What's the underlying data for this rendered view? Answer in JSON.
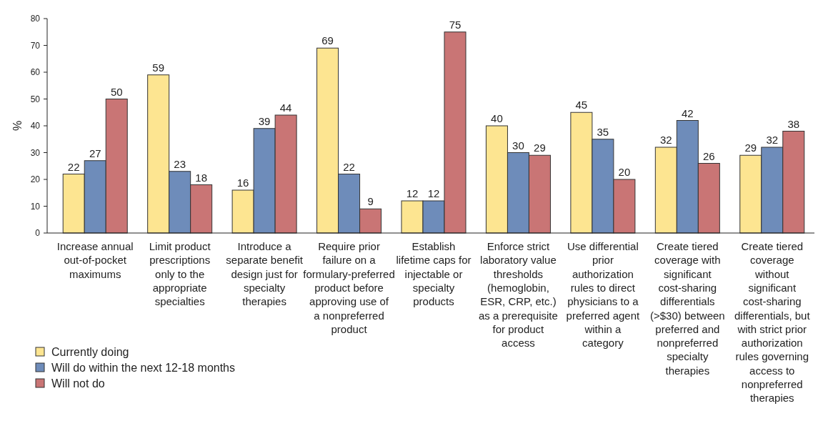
{
  "chart_data": {
    "type": "bar",
    "ylabel": "%",
    "categories": [
      "Increase annual out-of-pocket maximums",
      "Limit product prescriptions only to the appropriate specialties",
      "Introduce a separate benefit design just for specialty therapies",
      "Require prior failure on a formulary-preferred product before approving use of a nonpreferred product",
      "Establish lifetime caps for injectable or specialty products",
      "Enforce strict laboratory value thresholds (hemoglobin, ESR, CRP, etc.) as a prerequisite for product access",
      "Use differential prior authorization rules to direct physicians to a preferred agent within a category",
      "Create tiered coverage with significant cost-sharing differentials (>$30) between preferred and nonpreferred specialty therapies",
      "Create tiered coverage without significant cost-sharing differentials, but with strict prior authorization rules governing access to nonpreferred therapies"
    ],
    "series": [
      {
        "name": "Currently doing",
        "color": "#fde591",
        "values": [
          22,
          59,
          16,
          69,
          12,
          40,
          45,
          32,
          29
        ]
      },
      {
        "name": "Will do within the next 12-18 months",
        "color": "#6e8cba",
        "values": [
          27,
          23,
          39,
          22,
          12,
          30,
          35,
          42,
          32
        ]
      },
      {
        "name": "Will not do",
        "color": "#c97575",
        "values": [
          50,
          18,
          44,
          9,
          75,
          29,
          20,
          26,
          38
        ]
      }
    ],
    "ylim": [
      0,
      80
    ],
    "yticks": [
      0,
      10,
      20,
      30,
      40,
      50,
      60,
      70,
      80
    ],
    "data_labels": true,
    "legend": "bottom left",
    "grid": false
  }
}
